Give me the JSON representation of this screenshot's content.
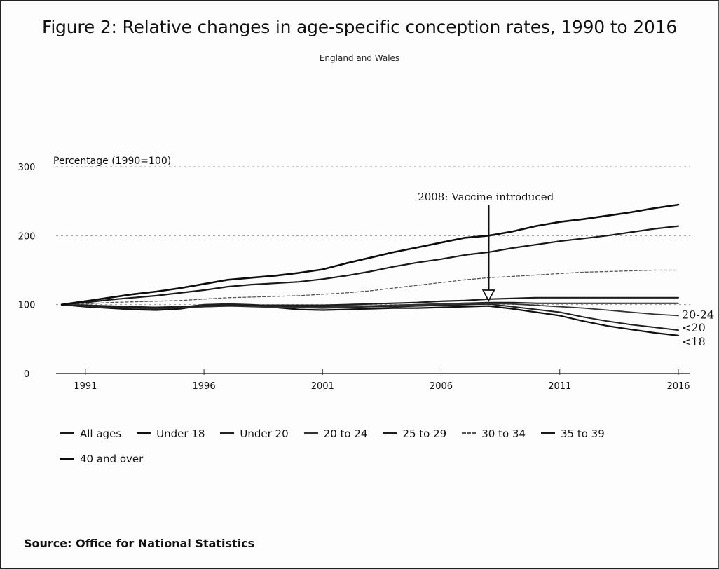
{
  "chart_data": {
    "type": "line",
    "title": "Figure 2: Relative changes in age-specific conception rates, 1990 to 2016",
    "subtitle": "England and Wales",
    "ylabel": "Percentage (1990=100)",
    "ylim": [
      0,
      300
    ],
    "yticks": [
      0,
      100,
      200,
      300
    ],
    "xlim": [
      1990,
      2016
    ],
    "xticks": [
      1991,
      1996,
      2001,
      2006,
      2011,
      2016
    ],
    "xtick_labels": [
      "1991",
      "1996",
      "2001",
      "2006",
      "2011",
      "2016"
    ],
    "x": [
      1990,
      1991,
      1992,
      1993,
      1994,
      1995,
      1996,
      1997,
      1998,
      1999,
      2000,
      2001,
      2002,
      2003,
      2004,
      2005,
      2006,
      2007,
      2008,
      2009,
      2010,
      2011,
      2012,
      2013,
      2014,
      2015,
      2016
    ],
    "grid": "dotted horizontal",
    "legend_position": "bottom",
    "series": [
      {
        "name": "All ages",
        "color": "#1a1a1a",
        "width": 2.0,
        "values": [
          100,
          99,
          98,
          97,
          96,
          96,
          97,
          98,
          98,
          97,
          97,
          97,
          98,
          98,
          99,
          100,
          101,
          102,
          103,
          103,
          102,
          102,
          102,
          102,
          102,
          102,
          102
        ]
      },
      {
        "name": "Under 18",
        "color": "#111111",
        "width": 2.2,
        "values": [
          100,
          97,
          95,
          93,
          92,
          94,
          99,
          100,
          98,
          96,
          93,
          92,
          93,
          94,
          95,
          95,
          96,
          97,
          98,
          94,
          89,
          84,
          76,
          69,
          64,
          59,
          55
        ]
      },
      {
        "name": "Under 20",
        "color": "#222222",
        "width": 2.0,
        "values": [
          100,
          98,
          96,
          95,
          94,
          96,
          100,
          101,
          100,
          98,
          96,
          95,
          96,
          97,
          97,
          98,
          99,
          100,
          101,
          97,
          93,
          89,
          82,
          76,
          71,
          67,
          63
        ]
      },
      {
        "name": "20 to 24",
        "color": "#333333",
        "width": 1.8,
        "values": [
          100,
          98,
          96,
          95,
          95,
          96,
          97,
          98,
          97,
          96,
          96,
          96,
          97,
          98,
          99,
          100,
          101,
          102,
          102,
          101,
          99,
          97,
          95,
          92,
          89,
          86,
          84
        ]
      },
      {
        "name": "25 to 29",
        "color": "#1d1d1d",
        "width": 2.2,
        "values": [
          100,
          99,
          97,
          96,
          96,
          97,
          98,
          99,
          99,
          99,
          99,
          99,
          100,
          101,
          102,
          103,
          105,
          106,
          108,
          109,
          110,
          110,
          110,
          110,
          110,
          110,
          110
        ]
      },
      {
        "name": "30 to 34",
        "color": "#555555",
        "width": 1.3,
        "dash": "4 3",
        "values": [
          100,
          101,
          103,
          104,
          105,
          106,
          108,
          110,
          111,
          112,
          113,
          115,
          117,
          120,
          124,
          128,
          132,
          136,
          139,
          141,
          143,
          145,
          147,
          148,
          149,
          150,
          150
        ]
      },
      {
        "name": "35 to 39",
        "color": "#1a1a1a",
        "width": 2.2,
        "values": [
          100,
          103,
          107,
          110,
          113,
          117,
          121,
          126,
          129,
          131,
          133,
          137,
          142,
          148,
          155,
          161,
          166,
          172,
          176,
          182,
          187,
          192,
          196,
          200,
          205,
          210,
          214
        ]
      },
      {
        "name": "40 and over",
        "color": "#0d0d0d",
        "width": 2.6,
        "values": [
          100,
          105,
          110,
          115,
          119,
          124,
          130,
          136,
          139,
          142,
          146,
          151,
          160,
          168,
          176,
          183,
          190,
          197,
          200,
          206,
          214,
          220,
          224,
          229,
          234,
          240,
          245
        ]
      }
    ],
    "annotation": {
      "text": "2008: Vaccine introduced",
      "x": 2008
    },
    "end_labels": [
      {
        "text": "20-24",
        "series": "20 to 24"
      },
      {
        "text": "<20",
        "series": "Under 20"
      },
      {
        "text": "<18",
        "series": "Under 18"
      }
    ]
  },
  "source": "Source: Office for National Statistics"
}
